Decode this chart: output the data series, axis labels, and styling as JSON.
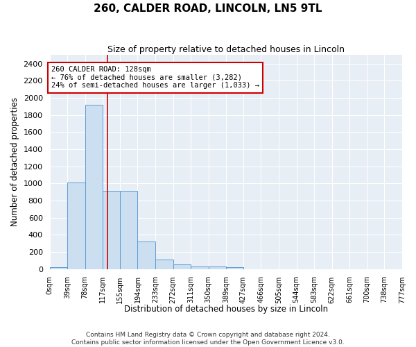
{
  "title": "260, CALDER ROAD, LINCOLN, LN5 9TL",
  "subtitle": "Size of property relative to detached houses in Lincoln",
  "xlabel": "Distribution of detached houses by size in Lincoln",
  "ylabel": "Number of detached properties",
  "bin_edges": [
    0,
    39,
    78,
    117,
    155,
    194,
    233,
    272,
    311,
    350,
    389,
    427,
    466,
    505,
    544,
    583,
    622,
    661,
    700,
    738,
    777
  ],
  "bin_labels": [
    "0sqm",
    "39sqm",
    "78sqm",
    "117sqm",
    "155sqm",
    "194sqm",
    "233sqm",
    "272sqm",
    "311sqm",
    "350sqm",
    "389sqm",
    "427sqm",
    "466sqm",
    "505sqm",
    "544sqm",
    "583sqm",
    "622sqm",
    "661sqm",
    "700sqm",
    "738sqm",
    "777sqm"
  ],
  "bar_heights": [
    20,
    1010,
    1920,
    910,
    910,
    320,
    110,
    55,
    30,
    25,
    20,
    0,
    0,
    0,
    0,
    0,
    0,
    0,
    0,
    0
  ],
  "bar_color": "#ccdff0",
  "bar_edge_color": "#5b9bd5",
  "red_line_x": 128,
  "red_line_color": "#cc0000",
  "ylim": [
    0,
    2500
  ],
  "yticks": [
    0,
    200,
    400,
    600,
    800,
    1000,
    1200,
    1400,
    1600,
    1800,
    2000,
    2200,
    2400
  ],
  "annotation_line1": "260 CALDER ROAD: 128sqm",
  "annotation_line2": "← 76% of detached houses are smaller (3,282)",
  "annotation_line3": "24% of semi-detached houses are larger (1,033) →",
  "annotation_box_color": "#cc0000",
  "background_color": "#e8eef5",
  "grid_color": "#c8d4e0",
  "footer_line1": "Contains HM Land Registry data © Crown copyright and database right 2024.",
  "footer_line2": "Contains public sector information licensed under the Open Government Licence v3.0."
}
